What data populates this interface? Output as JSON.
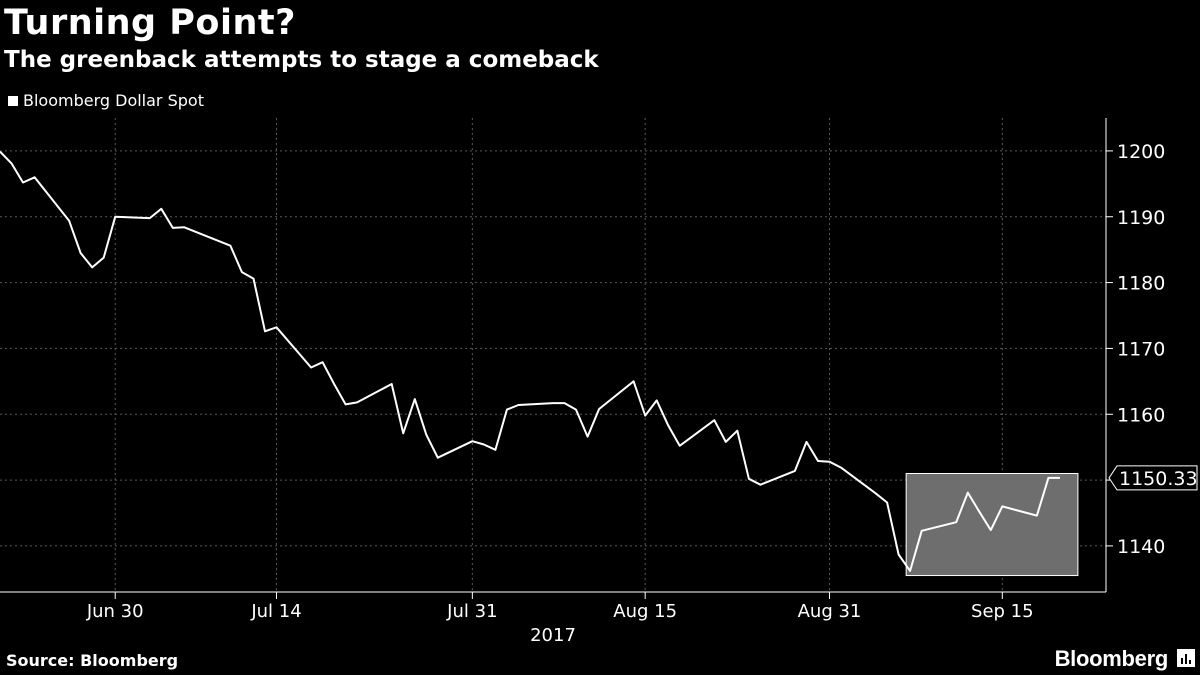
{
  "header": {
    "title": "Turning Point?",
    "subtitle": "The greenback attempts to stage a comeback"
  },
  "footer": {
    "source": "Source: Bloomberg",
    "brand": "Bloomberg"
  },
  "colors": {
    "background": "#000000",
    "line": "#ffffff",
    "grid": "#5a5a5a",
    "highlight_fill": "#6e6e6e"
  },
  "icons": [
    "legend-square-icon",
    "bloomberg-logo-icon"
  ],
  "chart_data": {
    "type": "line",
    "title": "Turning Point?",
    "subtitle": "The greenback attempts to stage a comeback",
    "xlabel": "2017",
    "ylabel": "",
    "legend": "top-left",
    "grid": true,
    "y_axis_side": "right",
    "ylim": [
      1133,
      1205
    ],
    "yticks": [
      1140,
      1150,
      1160,
      1170,
      1180,
      1190,
      1200
    ],
    "xticks": [
      {
        "label": "Jun 30",
        "x": "2017-06-30"
      },
      {
        "label": "Jul 14",
        "x": "2017-07-14"
      },
      {
        "label": "Jul 31",
        "x": "2017-07-31"
      },
      {
        "label": "Aug 15",
        "x": "2017-08-15"
      },
      {
        "label": "Aug 31",
        "x": "2017-08-31"
      },
      {
        "label": "Sep 15",
        "x": "2017-09-15"
      }
    ],
    "xlim": [
      "2017-06-20",
      "2017-09-24"
    ],
    "year_label": "2017",
    "last_value_label": "1150.33",
    "highlight": {
      "x_start": "2017-09-07",
      "x_end": "2017-09-20",
      "y_start": 1135.5,
      "y_end": 1151
    },
    "series": [
      {
        "name": "Bloomberg Dollar Spot",
        "x": [
          "2017-06-20",
          "2017-06-21",
          "2017-06-22",
          "2017-06-23",
          "2017-06-26",
          "2017-06-27",
          "2017-06-28",
          "2017-06-29",
          "2017-06-30",
          "2017-07-03",
          "2017-07-04",
          "2017-07-05",
          "2017-07-06",
          "2017-07-07",
          "2017-07-10",
          "2017-07-11",
          "2017-07-12",
          "2017-07-13",
          "2017-07-14",
          "2017-07-17",
          "2017-07-18",
          "2017-07-19",
          "2017-07-20",
          "2017-07-21",
          "2017-07-24",
          "2017-07-25",
          "2017-07-26",
          "2017-07-27",
          "2017-07-28",
          "2017-07-31",
          "2017-08-01",
          "2017-08-02",
          "2017-08-03",
          "2017-08-04",
          "2017-08-07",
          "2017-08-08",
          "2017-08-09",
          "2017-08-10",
          "2017-08-11",
          "2017-08-14",
          "2017-08-15",
          "2017-08-16",
          "2017-08-17",
          "2017-08-18",
          "2017-08-21",
          "2017-08-22",
          "2017-08-23",
          "2017-08-24",
          "2017-08-25",
          "2017-08-28",
          "2017-08-29",
          "2017-08-30",
          "2017-08-31",
          "2017-09-01",
          "2017-09-04",
          "2017-09-05",
          "2017-09-06",
          "2017-09-07",
          "2017-09-08",
          "2017-09-11",
          "2017-09-12",
          "2017-09-13",
          "2017-09-14",
          "2017-09-15",
          "2017-09-18",
          "2017-09-19",
          "2017-09-20"
        ],
        "values": [
          1199.9,
          1198.1,
          1195.2,
          1196.0,
          1189.4,
          1184.5,
          1182.3,
          1183.8,
          1190.0,
          1189.8,
          1191.2,
          1188.3,
          1188.4,
          1187.7,
          1185.6,
          1181.6,
          1180.6,
          1172.6,
          1173.2,
          1167.1,
          1167.9,
          1164.6,
          1161.5,
          1161.8,
          1164.6,
          1157.1,
          1162.3,
          1156.9,
          1153.4,
          1155.9,
          1155.4,
          1154.6,
          1160.7,
          1161.4,
          1161.7,
          1161.7,
          1160.7,
          1156.6,
          1160.8,
          1165.0,
          1159.8,
          1162.1,
          1158.3,
          1155.2,
          1159.1,
          1155.8,
          1157.5,
          1150.2,
          1149.3,
          1151.4,
          1155.8,
          1152.9,
          1152.8,
          1151.9,
          1148.0,
          1146.6,
          1138.7,
          1136.2,
          1142.3,
          1143.6,
          1148.1,
          1145.2,
          1142.4,
          1146.0,
          1144.6,
          1150.33,
          1150.33
        ]
      }
    ]
  }
}
